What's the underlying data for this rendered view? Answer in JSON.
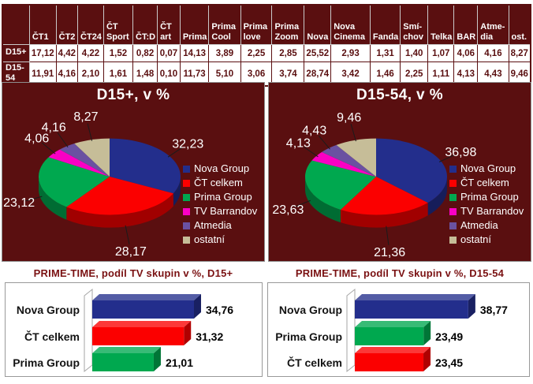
{
  "table": {
    "corner_label": "",
    "columns": [
      "ČT1",
      "ČT2",
      "ČT24",
      "ČT Sport",
      "ČT:D",
      "ČT art",
      "Prima",
      "Prima Cool",
      "Prima love",
      "Prima Zoom",
      "Nova",
      "Nova Cinema",
      "Fanda",
      "Smí-chov",
      "Telka",
      "BAR",
      "Atme-dia",
      "ost."
    ],
    "rows": [
      {
        "label": "D15+",
        "values": [
          "17,12",
          "4,42",
          "4,22",
          "1,52",
          "0,82",
          "0,07",
          "14,13",
          "3,89",
          "2,25",
          "2,85",
          "25,52",
          "2,93",
          "1,31",
          "1,40",
          "1,07",
          "4,06",
          "4,16",
          "8,27"
        ]
      },
      {
        "label": "D15-54",
        "values": [
          "11,91",
          "4,16",
          "2,10",
          "1,61",
          "1,48",
          "0,10",
          "11,73",
          "5,10",
          "3,06",
          "3,74",
          "28,74",
          "3,42",
          "1,46",
          "2,25",
          "1,11",
          "4,13",
          "4,43",
          "9,46"
        ]
      }
    ]
  },
  "colors": {
    "panel_background": "#5A0F10",
    "table_text": "#5A0F10",
    "bar_title_text": "#7A1112",
    "series": {
      "Nova Group": "#232E8C",
      "ČT celkem": "#FB0000",
      "Prima Group": "#00A84F",
      "TV Barrandov": "#FA00C4",
      "Atmedia": "#6A51A1",
      "ostatní": "#C6BD98"
    }
  },
  "chart_data": [
    {
      "type": "pie",
      "title": "D15+, v %",
      "labels": [
        "Nova Group",
        "ČT celkem",
        "Prima Group",
        "TV Barrandov",
        "Atmedia",
        "ostatní"
      ],
      "values": [
        32.23,
        28.17,
        23.12,
        4.06,
        4.16,
        8.27
      ],
      "value_labels": [
        "32,23",
        "28,17",
        "23,12",
        "4,06",
        "4,16",
        "8,27"
      ],
      "legend_position": "right",
      "style": "3d"
    },
    {
      "type": "pie",
      "title": "D15-54, v %",
      "labels": [
        "Nova Group",
        "ČT celkem",
        "Prima Group",
        "TV Barrandov",
        "Atmedia",
        "ostatní"
      ],
      "values": [
        36.98,
        21.36,
        23.63,
        4.13,
        4.43,
        9.46
      ],
      "value_labels": [
        "36,98",
        "21,36",
        "23,63",
        "4,13",
        "4,43",
        "9,46"
      ],
      "legend_position": "right",
      "style": "3d"
    },
    {
      "type": "bar",
      "title": "PRIME-TIME, podíl TV skupin v %, D15+",
      "orientation": "horizontal",
      "categories": [
        "Nova Group",
        "ČT celkem",
        "Prima Group"
      ],
      "values": [
        34.76,
        31.32,
        21.01
      ],
      "value_labels": [
        "34,76",
        "31,32",
        "21,01"
      ],
      "xlim": [
        0,
        45
      ],
      "style": "3d"
    },
    {
      "type": "bar",
      "title": "PRIME-TIME, podíl TV skupin v %, D15-54",
      "orientation": "horizontal",
      "categories": [
        "Nova Group",
        "Prima Group",
        "ČT celkem"
      ],
      "values": [
        38.77,
        23.49,
        23.45
      ],
      "value_labels": [
        "38,77",
        "23,49",
        "23,45"
      ],
      "xlim": [
        0,
        45
      ],
      "style": "3d"
    }
  ]
}
